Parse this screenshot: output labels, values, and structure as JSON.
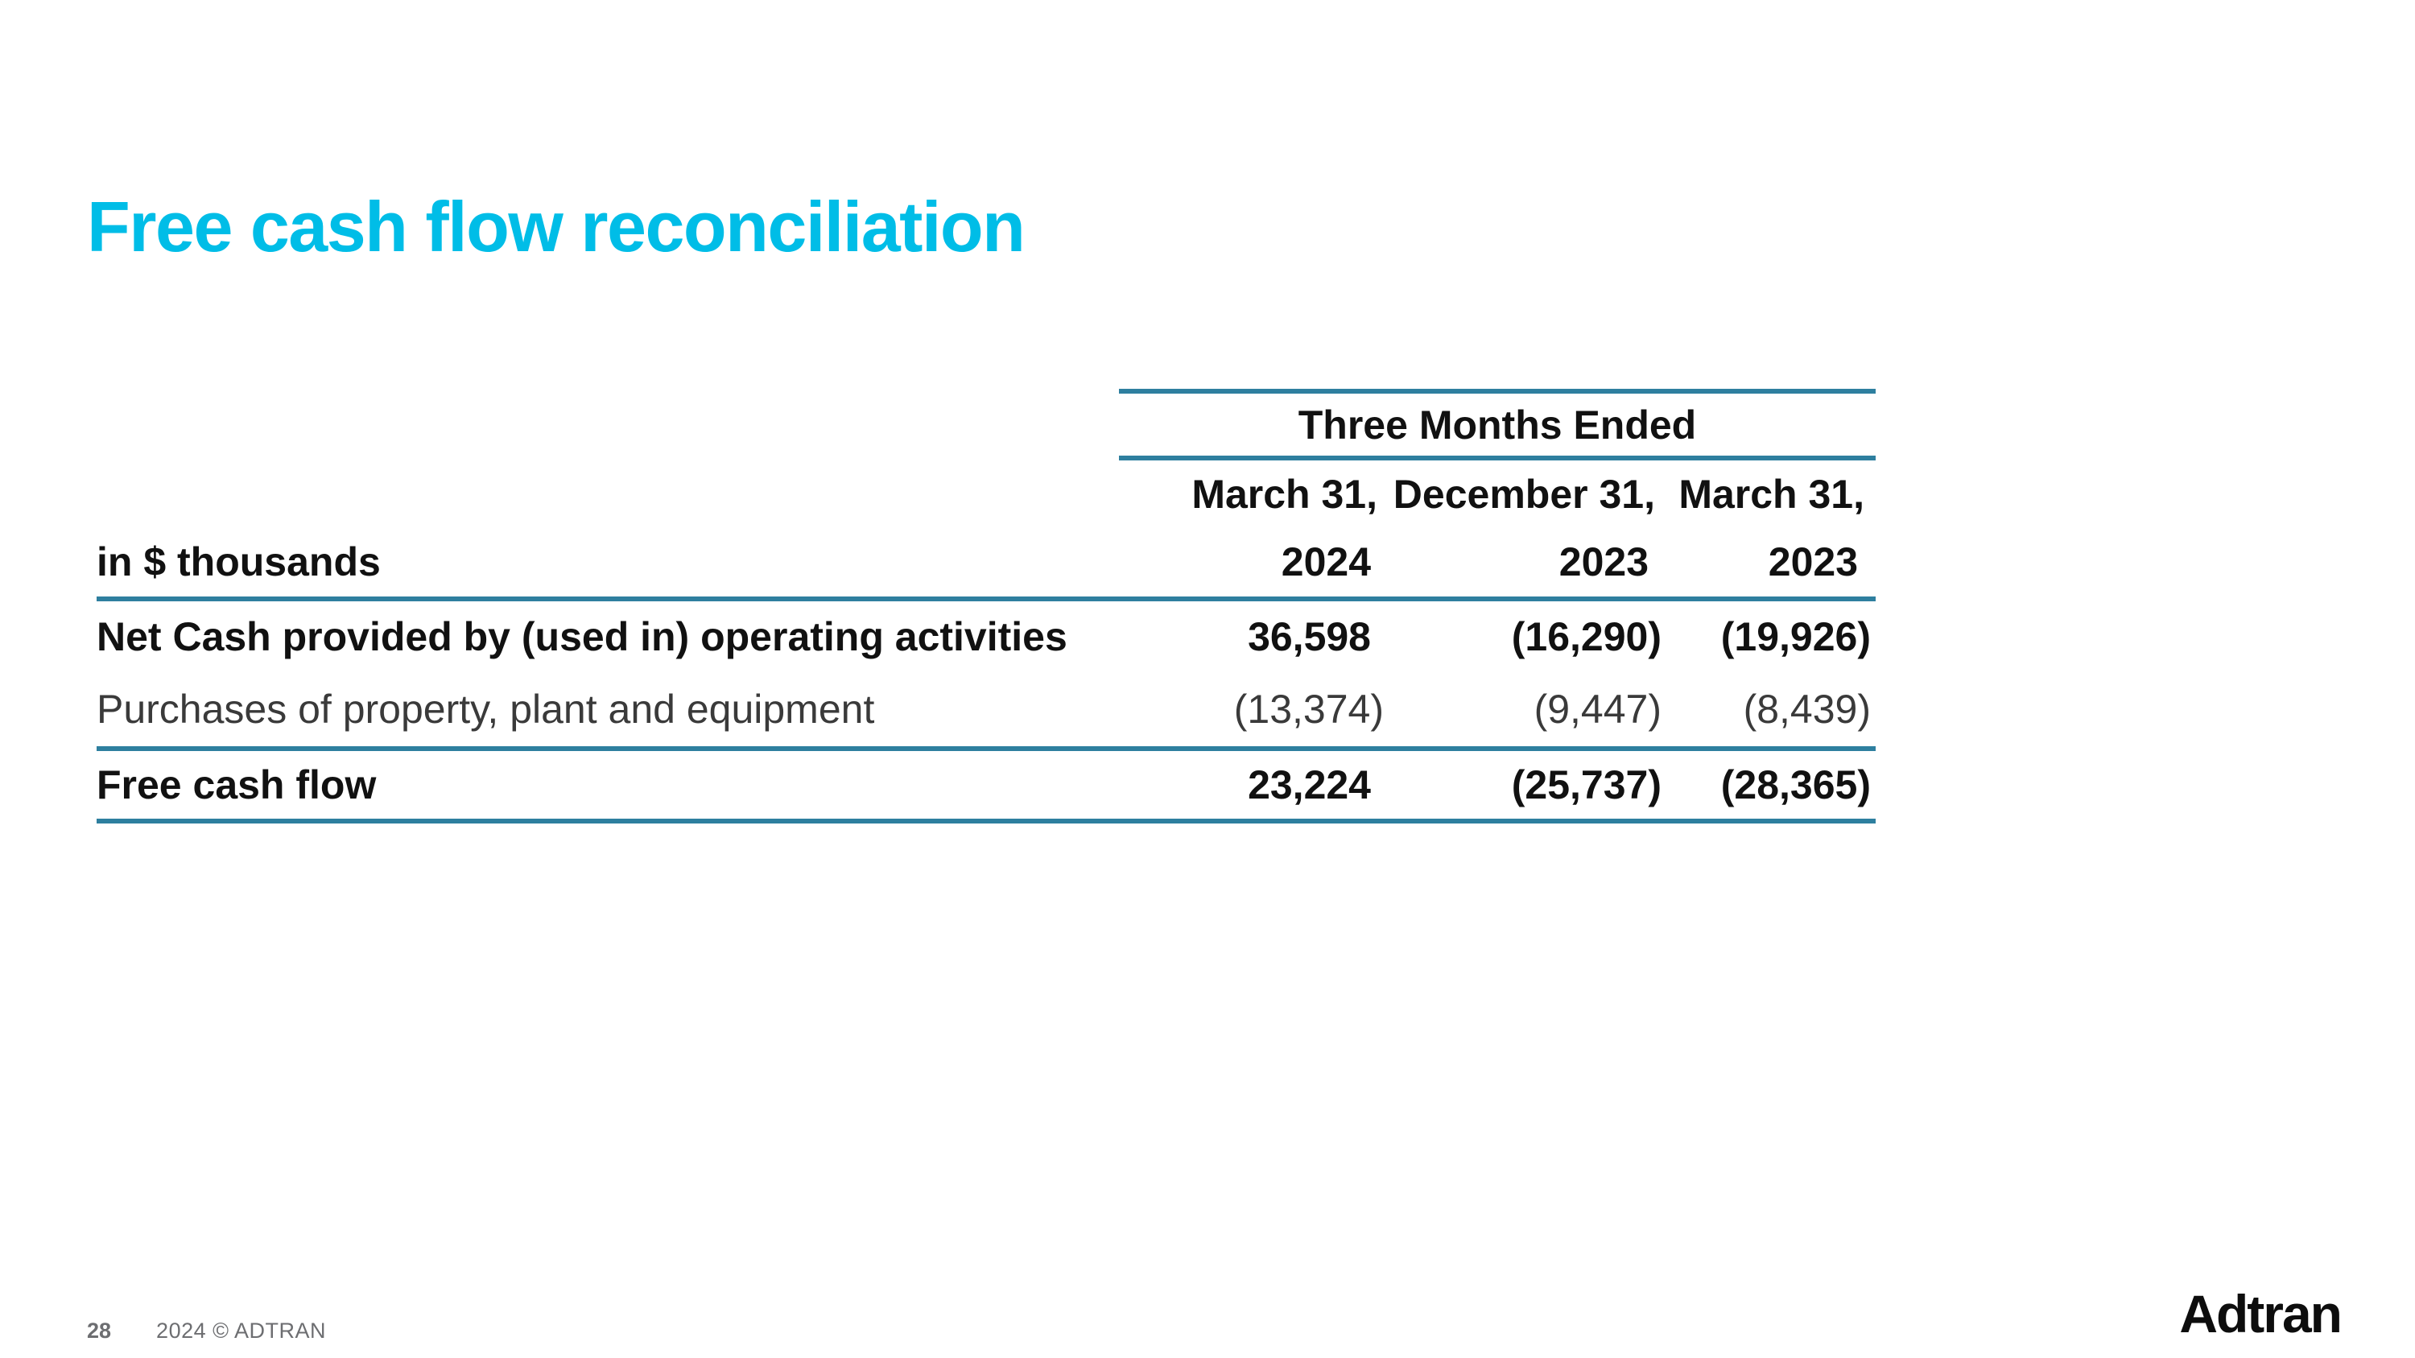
{
  "slide": {
    "title": "Free cash flow reconciliation",
    "footer": {
      "page_number": "28",
      "copyright": "2024 © ADTRAN"
    },
    "logo_text": "Adtran"
  },
  "table": {
    "span_header": "Three Months Ended",
    "unit_label": "in $ thousands",
    "columns": [
      {
        "period": "March 31,",
        "year": "2024"
      },
      {
        "period": "December 31,",
        "year": "2023"
      },
      {
        "period": "March 31,",
        "year": "2023"
      }
    ],
    "rows": [
      {
        "label": "Net Cash provided by (used in) operating activities",
        "values": [
          "36,598",
          "(16,290)",
          "(19,926)"
        ]
      },
      {
        "label": "Purchases of property, plant and equipment",
        "values": [
          "(13,374)",
          "(9,447)",
          "(8,439)"
        ]
      },
      {
        "label": "Free cash flow",
        "values": [
          "23,224",
          "(25,737)",
          "(28,365)"
        ]
      }
    ]
  },
  "colors": {
    "accent_cyan": "#00bde7",
    "rule_teal": "#2e7f9f",
    "footer_gray": "#6d6e71"
  }
}
